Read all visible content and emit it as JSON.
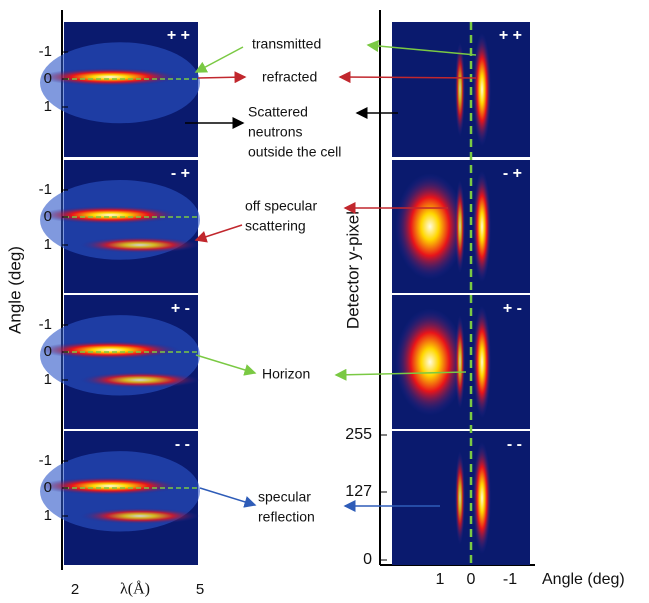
{
  "left_panel": {
    "y_axis_label": "Angle (deg)",
    "x_axis_label": "λ(Å)",
    "x_ticks": [
      "2",
      "5"
    ],
    "panels": [
      {
        "tag": "+ +",
        "y_ticks": [
          "-1",
          "0",
          "1"
        ]
      },
      {
        "tag": "- +",
        "y_ticks": [
          "-1",
          "0",
          "1"
        ]
      },
      {
        "tag": "+ -",
        "y_ticks": [
          "-1",
          "0",
          "1"
        ]
      },
      {
        "tag": "- -",
        "y_ticks": [
          "-1",
          "0",
          "1"
        ]
      }
    ]
  },
  "right_panel": {
    "y_axis_label": "Detector y-pixel",
    "x_axis_label": "Angle (deg)",
    "x_ticks": [
      "1",
      "0",
      "-1"
    ],
    "y_ticks": [
      "255",
      "127",
      "0"
    ],
    "panels": [
      {
        "tag": "+ +"
      },
      {
        "tag": "- +"
      },
      {
        "tag": "+ -"
      },
      {
        "tag": "- -"
      }
    ]
  },
  "annotations": [
    {
      "lines": [
        "transmitted"
      ]
    },
    {
      "lines": [
        "refracted"
      ]
    },
    {
      "lines": [
        "Scattered",
        "neutrons",
        "outside the cell"
      ]
    },
    {
      "lines": [
        "off specular",
        "scattering"
      ]
    },
    {
      "lines": [
        "Horizon"
      ]
    },
    {
      "lines": [
        "specular",
        "reflection"
      ]
    }
  ]
}
